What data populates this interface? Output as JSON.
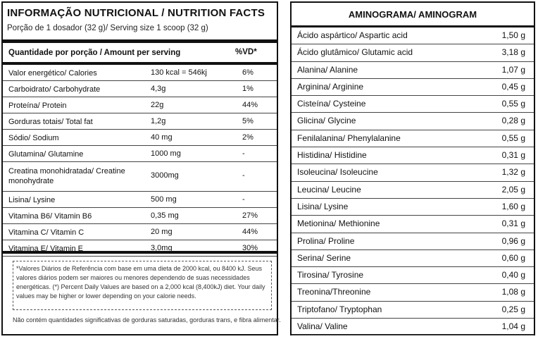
{
  "nutrition": {
    "title": "INFORMAÇÃO NUTRICIONAL / NUTRITION FACTS",
    "serving": "Porção de 1 dosador (32 g)/ Serving size 1 scoop (32 g)",
    "header_amount": "Quantidade por porção  / Amount per serving",
    "header_vd": "%VD*",
    "rows": [
      {
        "name": "Valor energético/ Calories",
        "amount": "130 kcal = 546kj",
        "vd": "6%"
      },
      {
        "name": "Carboidrato/ Carbohydrate",
        "amount": "4,3g",
        "vd": "1%"
      },
      {
        "name": "Proteína/ Protein",
        "amount": "22g",
        "vd": "44%"
      },
      {
        "name": "Gorduras totais/ Total fat",
        "amount": "1,2g",
        "vd": "5%"
      },
      {
        "name": "Sódio/ Sodium",
        "amount": "40 mg",
        "vd": "2%"
      },
      {
        "name": "Glutamina/ Glutamine",
        "amount": "1000 mg",
        "vd": "-"
      },
      {
        "name": "Creatina monohidratada/ Creatine monohydrate",
        "amount": "3000mg",
        "vd": "-"
      },
      {
        "name": "Lisina/ Lysine",
        "amount": "500 mg",
        "vd": "-"
      },
      {
        "name": "Vitamina B6/ Vitamin B6",
        "amount": "0,35 mg",
        "vd": "27%"
      },
      {
        "name": "Vitamina C/ Vitamin C",
        "amount": "20 mg",
        "vd": "44%"
      },
      {
        "name": "Vitamina E/ Vitamin E",
        "amount": "3,0mg",
        "vd": "30%"
      }
    ],
    "footnote": "*Valores Diários de Referência com base em uma dieta de 2000 kcal, ou 8400 kJ. Seus valores diários podem ser maiores ou menores dependendo de suas necessidades energéticas. (*) Percent Daily Values are based on a 2,000 kcal (8,400kJ) diet. Your daily values may be higher or lower depending on your calorie needs.",
    "footer": "Não contém quantidades significativas de gorduras saturadas, gorduras trans, e fibra alimentar."
  },
  "aminogram": {
    "title": "AMINOGRAMA/ AMINOGRAM",
    "rows": [
      {
        "name": "Ácido aspártico/ Aspartic acid",
        "value": "1,50 g"
      },
      {
        "name": "Ácido glutâmico/  Glutamic acid",
        "value": "3,18 g"
      },
      {
        "name": "Alanina/ Alanine",
        "value": "1,07 g"
      },
      {
        "name": "Arginina/ Arginine",
        "value": "0,45 g"
      },
      {
        "name": "Cisteína/ Cysteine",
        "value": "0,55 g"
      },
      {
        "name": "Glicina/ Glycine",
        "value": "0,28 g"
      },
      {
        "name": "Fenilalanina/ Phenylalanine",
        "value": "0,55 g"
      },
      {
        "name": "Histidina/ Histidine",
        "value": "0,31 g"
      },
      {
        "name": "Isoleucina/ Isoleucine",
        "value": "1,32 g"
      },
      {
        "name": "Leucina/ Leucine",
        "value": "2,05 g"
      },
      {
        "name": "Lisina/ Lysine",
        "value": "1,60 g"
      },
      {
        "name": "Metionina/ Methionine",
        "value": "0,31 g"
      },
      {
        "name": "Prolina/ Proline",
        "value": "0,96 g"
      },
      {
        "name": "Serina/ Serine",
        "value": "0,60 g"
      },
      {
        "name": "Tirosina/ Tyrosine",
        "value": "0,40 g"
      },
      {
        "name": "Treonina/Threonine",
        "value": "1,08 g"
      },
      {
        "name": "Triptofano/ Tryptophan",
        "value": "0,25 g"
      },
      {
        "name": "Valina/ Valine",
        "value": "1,04 g"
      }
    ]
  }
}
